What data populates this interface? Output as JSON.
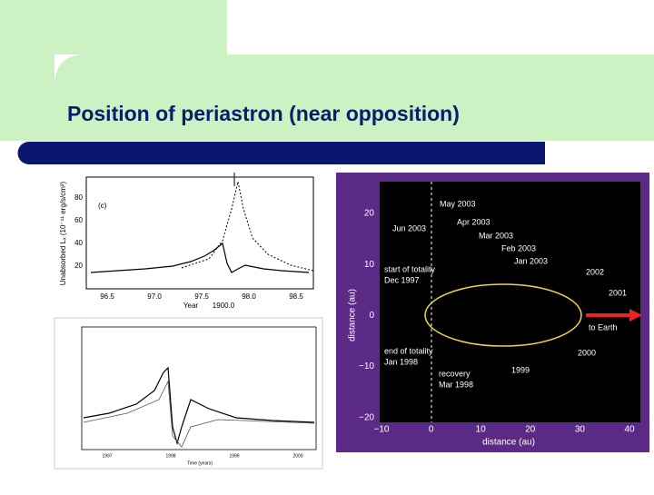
{
  "slide": {
    "title": "Position of periastron (near opposition)"
  },
  "xray_plot": {
    "panel_label": "(c)",
    "y_label": "Unabsorbed Lₓ (10⁻¹¹ erg/s/cm²)",
    "y_ticks": [
      "80",
      "60",
      "40",
      "20"
    ],
    "x_ticks": [
      "96.5",
      "97.0",
      "97.5",
      "98.0",
      "98.5"
    ],
    "x_label": "Year",
    "x_offset": "1900.0"
  },
  "light_curve_plot": {
    "x_ticks": [
      "1997",
      "1998",
      "1999",
      "2000"
    ],
    "x_label": "Time (years)"
  },
  "orbit_plot": {
    "x_label": "distance (au)",
    "y_label": "distance (au)",
    "x_ticks": [
      "−10",
      "0",
      "10",
      "20",
      "30",
      "40"
    ],
    "y_ticks": [
      "20",
      "10",
      "0",
      "−10",
      "−20"
    ],
    "annotations": [
      "May 2003",
      "Apr 2003",
      "Jun 2003",
      "Mar 2003",
      "Feb 2003",
      "Jan 2003",
      "2002",
      "start of totality",
      "Dec 1997",
      "2001",
      "to Earth",
      "end of totality",
      "Jan 1998",
      "2000",
      "1999",
      "recovery",
      "Mar 1998"
    ]
  }
}
